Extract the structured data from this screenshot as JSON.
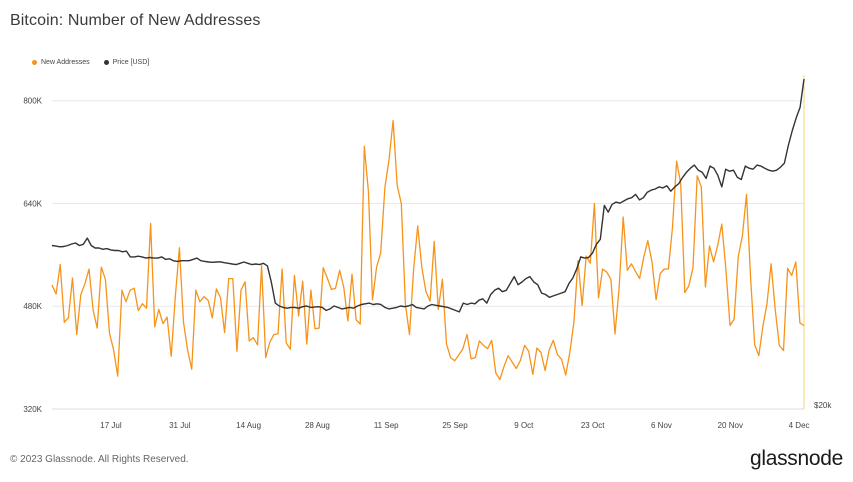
{
  "title": "Bitcoin: Number of New Addresses",
  "footer": "© 2023 Glassnode. All Rights Reserved.",
  "brand": "glassnode",
  "colors": {
    "new_addresses": "#f7931a",
    "price": "#333333",
    "right_axis": "#f7d774",
    "grid": "#e8e8e8"
  },
  "chart_data": {
    "type": "line",
    "title": "Bitcoin: Number of New Addresses",
    "legend_position": "top-left",
    "grid": "horizontal",
    "x_range": [
      "2023-07-05",
      "2023-12-05"
    ],
    "x_ticks": [
      "17 Jul",
      "31 Jul",
      "14 Aug",
      "28 Aug",
      "11 Sep",
      "25 Sep",
      "9 Oct",
      "23 Oct",
      "6 Nov",
      "20 Nov",
      "4 Dec"
    ],
    "y_left": {
      "ticks": [
        "320K",
        "480K",
        "640K",
        "800K"
      ],
      "tick_values": [
        320000,
        480000,
        640000,
        800000
      ],
      "range": [
        320000,
        840000
      ]
    },
    "y_right": {
      "ticks": [
        "$20k"
      ],
      "tick_values": [
        20000
      ],
      "range": [
        20000,
        48000
      ],
      "scale": "log"
    },
    "series": [
      {
        "name": "New Addresses",
        "axis": "left",
        "color": "#f7931a",
        "values": [
          513,
          499,
          545,
          455,
          462,
          524,
          436,
          498,
          515,
          538,
          474,
          446,
          541,
          522,
          438,
          412,
          371,
          505,
          487,
          505,
          508,
          473,
          484,
          477,
          609,
          448,
          475,
          453,
          463,
          402,
          495,
          571,
          455,
          412,
          382,
          505,
          487,
          495,
          489,
          462,
          507,
          493,
          439,
          523,
          523,
          410,
          505,
          518,
          426,
          431,
          420,
          543,
          400,
          424,
          436,
          437,
          538,
          423,
          413,
          528,
          465,
          519,
          421,
          505,
          445,
          446,
          540,
          524,
          506,
          508,
          536,
          509,
          457,
          530,
          459,
          452,
          729,
          659,
          490,
          541,
          563,
          665,
          708,
          769,
          668,
          640,
          483,
          436,
          537,
          605,
          541,
          503,
          488,
          581,
          475,
          522,
          421,
          400,
          395,
          404,
          414,
          436,
          398,
          400,
          426,
          419,
          414,
          427,
          376,
          366,
          386,
          403,
          393,
          383,
          396,
          419,
          410,
          374,
          415,
          408,
          380,
          412,
          427,
          405,
          397,
          373,
          408,
          455,
          551,
          481,
          558,
          547,
          640,
          493,
          538,
          533,
          522,
          437,
          508,
          619,
          536,
          546,
          534,
          523,
          556,
          582,
          549,
          490,
          531,
          538,
          538,
          603,
          706,
          671,
          501,
          512,
          540,
          683,
          666,
          510,
          574,
          549,
          575,
          608,
          537,
          450,
          460,
          558,
          590,
          654,
          524,
          420,
          403,
          449,
          484,
          546,
          475,
          419,
          411,
          539,
          528,
          549,
          454,
          450
        ],
        "unit": "thousand addresses"
      },
      {
        "name": "Price [USD]",
        "axis": "right",
        "color": "#333333",
        "values": [
          30700,
          30650,
          30600,
          30620,
          30700,
          30820,
          30900,
          30700,
          30800,
          31300,
          30700,
          30500,
          30500,
          30400,
          30450,
          30350,
          30300,
          30300,
          30200,
          30250,
          29800,
          29800,
          29850,
          29800,
          29700,
          29750,
          29700,
          29700,
          29800,
          29600,
          29650,
          29500,
          29450,
          29500,
          29500,
          29500,
          29600,
          29700,
          29500,
          29450,
          29400,
          29380,
          29400,
          29420,
          29350,
          29300,
          29250,
          29200,
          29300,
          29400,
          29300,
          29200,
          29250,
          29200,
          29300,
          29100,
          27900,
          26400,
          26200,
          26100,
          26050,
          26100,
          26100,
          26050,
          26150,
          26200,
          26100,
          26120,
          26150,
          26100,
          25900,
          26000,
          26200,
          26100,
          26000,
          26050,
          26100,
          26050,
          26200,
          26300,
          26350,
          26400,
          26300,
          26350,
          26300,
          26100,
          26000,
          26050,
          26100,
          26200,
          26150,
          26200,
          26300,
          26100,
          26050,
          26000,
          26200,
          26300,
          26250,
          26200,
          26150,
          26100,
          26000,
          25900,
          25800,
          26400,
          26300,
          26400,
          26350,
          26600,
          26700,
          26400,
          27000,
          27300,
          27450,
          27200,
          27300,
          27800,
          28300,
          27700,
          27900,
          28150,
          28300,
          27900,
          27700,
          27100,
          27000,
          26800,
          26900,
          27000,
          27100,
          27200,
          27800,
          28200,
          28900,
          29800,
          29700,
          29750,
          30100,
          30800,
          31200,
          34100,
          33500,
          34200,
          34400,
          34300,
          34500,
          34700,
          34800,
          35100,
          34600,
          34800,
          35300,
          35500,
          35600,
          35800,
          35700,
          35900,
          35400,
          35800,
          36100,
          36700,
          37200,
          37600,
          37900,
          37400,
          37200,
          36600,
          37800,
          37600,
          36900,
          35800,
          37500,
          37300,
          37400,
          36700,
          36500,
          37800,
          37600,
          37500,
          37900,
          37800,
          37600,
          37400,
          37300,
          37400,
          37700,
          38100,
          39900,
          41500,
          42900,
          44100,
          47500
        ],
        "unit": "USD"
      }
    ]
  }
}
